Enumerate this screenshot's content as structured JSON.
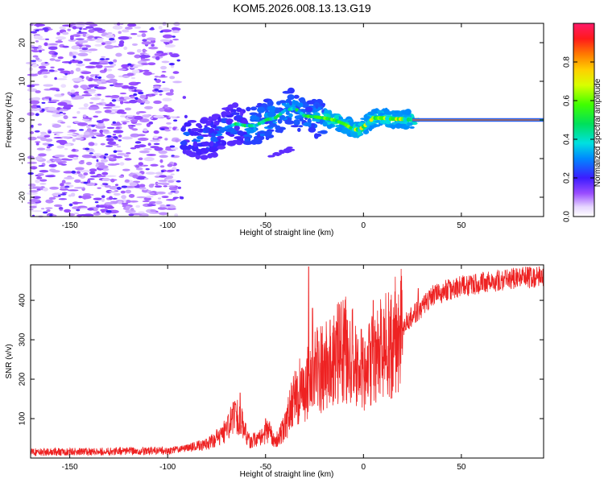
{
  "title": "KOM5.2026.008.13.13.G19",
  "chart_data": [
    {
      "type": "heatmap",
      "xlabel": "Height of straight line (km)",
      "ylabel": "Frequency (Hz)",
      "xlim": [
        -170,
        92
      ],
      "ylim": [
        -25,
        25
      ],
      "x_ticks": [
        "-150",
        "-100",
        "-50",
        "0",
        "50"
      ],
      "x_tick_values": [
        -150,
        -100,
        -50,
        0,
        50
      ],
      "y_ticks": [
        "-20",
        "-10",
        "0",
        "10",
        "20"
      ],
      "y_tick_values": [
        -20,
        -10,
        0,
        10,
        20
      ],
      "colorbar": {
        "label": "Normalized spectral amplitude",
        "range": [
          0,
          1
        ],
        "ticks": [
          "0.0",
          "0.2",
          "0.4",
          "0.6",
          "0.8"
        ],
        "tick_values": [
          0,
          0.2,
          0.4,
          0.6,
          0.8
        ]
      },
      "ridge": [
        {
          "x": -90,
          "y": -4
        },
        {
          "x": -85,
          "y": -4.5
        },
        {
          "x": -80,
          "y": -5
        },
        {
          "x": -75,
          "y": -4
        },
        {
          "x": -70,
          "y": -2
        },
        {
          "x": -65,
          "y": -1
        },
        {
          "x": -60,
          "y": -1.5
        },
        {
          "x": -55,
          "y": -1.5
        },
        {
          "x": -50,
          "y": 0
        },
        {
          "x": -45,
          "y": 0.5
        },
        {
          "x": -40,
          "y": 2.5
        },
        {
          "x": -35,
          "y": 3
        },
        {
          "x": -30,
          "y": 1
        },
        {
          "x": -25,
          "y": 0.8
        },
        {
          "x": -20,
          "y": 0.5
        },
        {
          "x": -15,
          "y": 0
        },
        {
          "x": -10,
          "y": -1
        },
        {
          "x": -5,
          "y": -2.5
        },
        {
          "x": -2,
          "y": -2.5
        },
        {
          "x": 2,
          "y": -1
        },
        {
          "x": 5,
          "y": 0.5
        },
        {
          "x": 10,
          "y": 0.5
        },
        {
          "x": 15,
          "y": 0.2
        },
        {
          "x": 20,
          "y": 0.2
        },
        {
          "x": 25,
          "y": 0
        },
        {
          "x": 92,
          "y": 0
        }
      ]
    },
    {
      "type": "line",
      "xlabel": "Height of straight line (km)",
      "ylabel": "SNR (v/v)",
      "xlim": [
        -170,
        92
      ],
      "ylim": [
        0,
        490
      ],
      "x_ticks": [
        "-150",
        "-100",
        "-50",
        "0",
        "50"
      ],
      "x_tick_values": [
        -150,
        -100,
        -50,
        0,
        50
      ],
      "y_ticks": [
        "100",
        "200",
        "300",
        "400"
      ],
      "y_tick_values": [
        100,
        200,
        300,
        400
      ],
      "series_color": "#ee2222",
      "envelope": [
        {
          "x": -170,
          "y": 15
        },
        {
          "x": -100,
          "y": 18
        },
        {
          "x": -90,
          "y": 25
        },
        {
          "x": -80,
          "y": 35
        },
        {
          "x": -72,
          "y": 60
        },
        {
          "x": -65,
          "y": 110
        },
        {
          "x": -62,
          "y": 90
        },
        {
          "x": -58,
          "y": 40
        },
        {
          "x": -52,
          "y": 55
        },
        {
          "x": -48,
          "y": 70
        },
        {
          "x": -45,
          "y": 40
        },
        {
          "x": -40,
          "y": 80
        },
        {
          "x": -35,
          "y": 160
        },
        {
          "x": -30,
          "y": 180
        },
        {
          "x": -26,
          "y": 220
        },
        {
          "x": -20,
          "y": 230
        },
        {
          "x": -15,
          "y": 260
        },
        {
          "x": -10,
          "y": 280
        },
        {
          "x": -5,
          "y": 250
        },
        {
          "x": 0,
          "y": 210
        },
        {
          "x": 5,
          "y": 250
        },
        {
          "x": 15,
          "y": 300
        },
        {
          "x": 25,
          "y": 360
        },
        {
          "x": 35,
          "y": 410
        },
        {
          "x": 45,
          "y": 430
        },
        {
          "x": 60,
          "y": 445
        },
        {
          "x": 75,
          "y": 455
        },
        {
          "x": 92,
          "y": 460
        }
      ],
      "peaks": [
        {
          "x": -63,
          "y": 165
        },
        {
          "x": -50,
          "y": 100
        },
        {
          "x": -28,
          "y": 485
        },
        {
          "x": -26,
          "y": 380
        },
        {
          "x": -17,
          "y": 350
        },
        {
          "x": 5,
          "y": 400
        },
        {
          "x": 28,
          "y": 430
        }
      ]
    }
  ]
}
